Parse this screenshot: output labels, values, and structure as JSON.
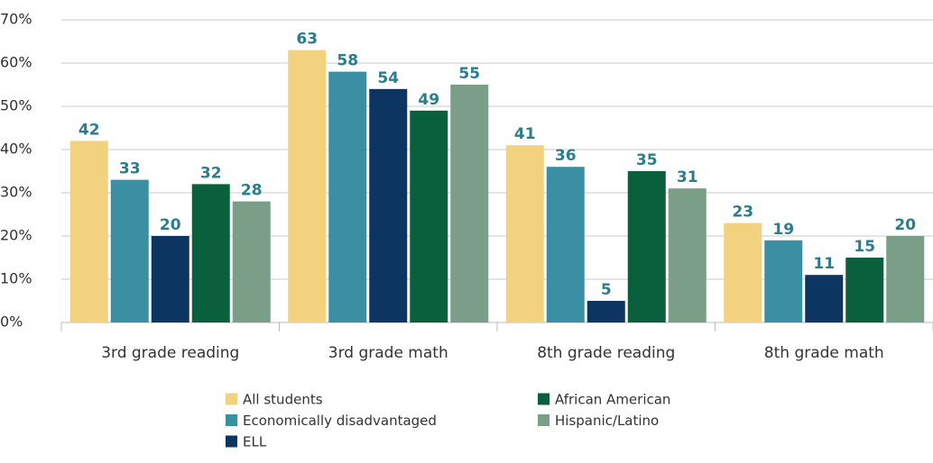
{
  "chart_data": {
    "type": "bar",
    "categories": [
      "3rd grade reading",
      "3rd grade math",
      "8th grade reading",
      "8th grade math"
    ],
    "series": [
      {
        "name": "All students",
        "color": "#f2d27f",
        "values": [
          42,
          63,
          41,
          23
        ]
      },
      {
        "name": "Economically disadvantaged",
        "color": "#3a8fa3",
        "values": [
          33,
          58,
          36,
          19
        ]
      },
      {
        "name": "ELL",
        "color": "#0c3561",
        "values": [
          20,
          54,
          5,
          11
        ]
      },
      {
        "name": "African American",
        "color": "#0a5f3c",
        "values": [
          32,
          49,
          35,
          15
        ]
      },
      {
        "name": "Hispanic/Latino",
        "color": "#7a9e88",
        "values": [
          28,
          55,
          31,
          20
        ]
      }
    ],
    "ylim": [
      0,
      70
    ],
    "yticks": [
      {
        "value": 0,
        "label": "0%"
      },
      {
        "value": 10,
        "label": "10%"
      },
      {
        "value": 20,
        "label": "20%"
      },
      {
        "value": 30,
        "label": "30%"
      },
      {
        "value": 40,
        "label": "40%"
      },
      {
        "value": 50,
        "label": "50%"
      },
      {
        "value": 60,
        "label": "60%"
      },
      {
        "value": 70,
        "label": "70%"
      }
    ],
    "grid": true
  }
}
